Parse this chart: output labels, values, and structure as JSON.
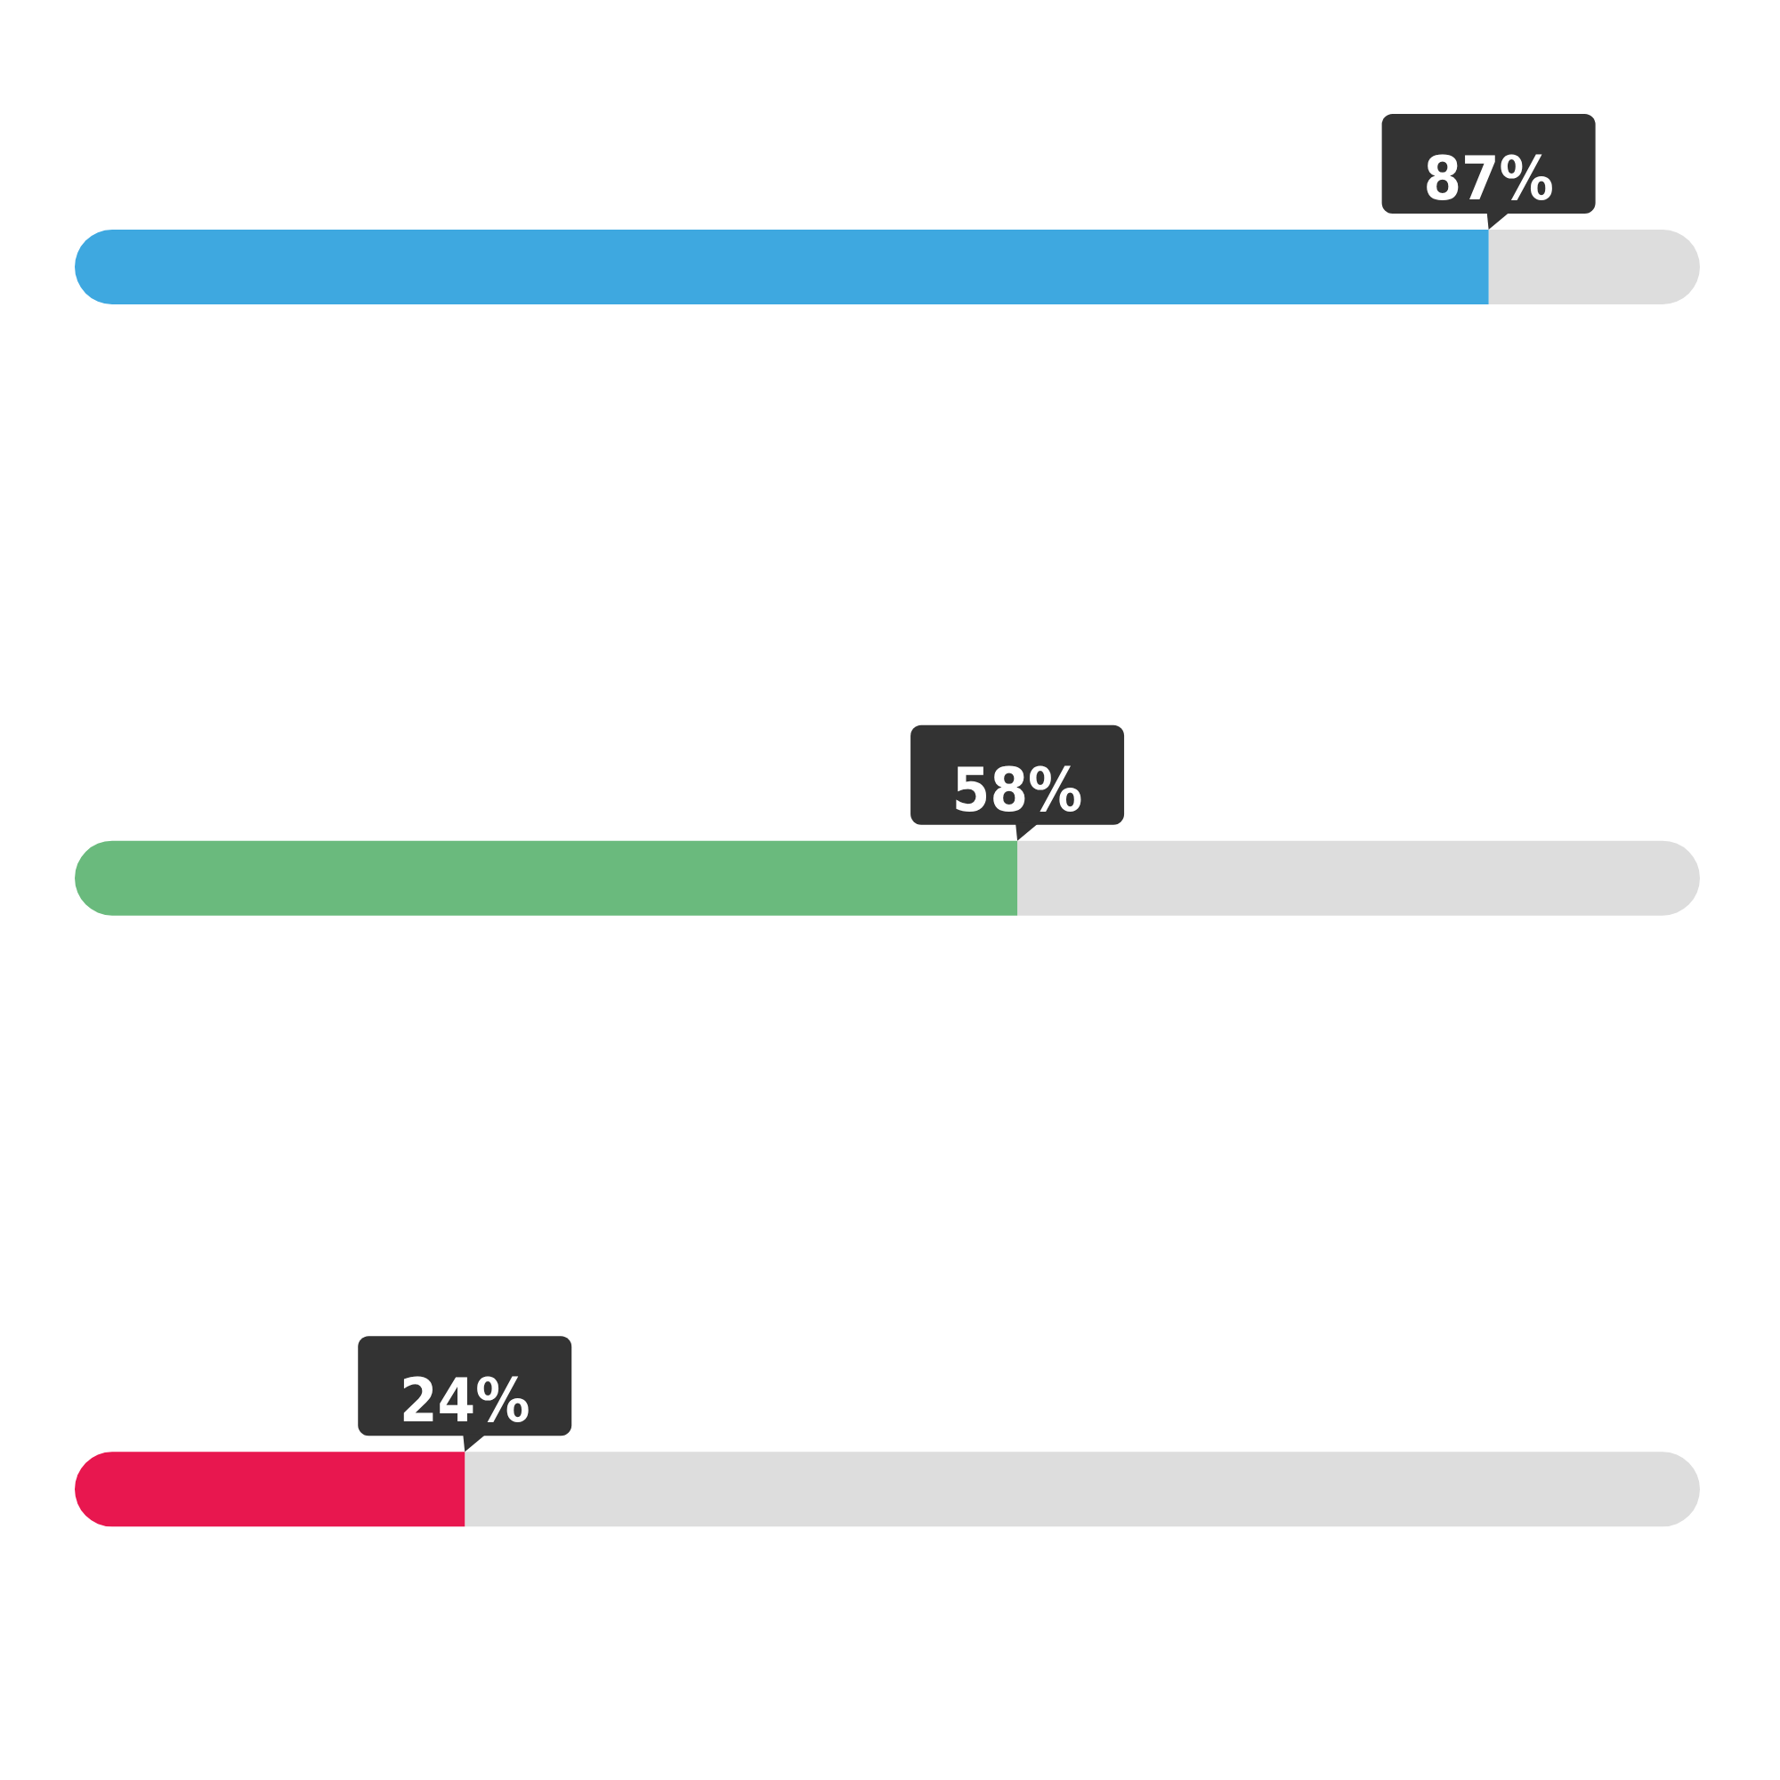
{
  "chart_data": {
    "type": "bar",
    "orientation": "horizontal",
    "categories": [
      null,
      null,
      null
    ],
    "values": [
      87,
      58,
      24
    ],
    "colors": [
      "#3ea8e0",
      "#6aba7d",
      "#e8174f"
    ],
    "xlim": [
      0,
      100
    ],
    "tick_labels": false,
    "value_labels": [
      "87%",
      "58%",
      "24%"
    ]
  }
}
